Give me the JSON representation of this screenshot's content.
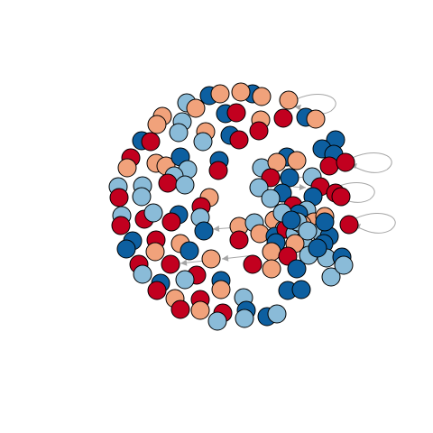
{
  "graph": {
    "type": "network",
    "node_colors": {
      "light_blue": "#8abbd8",
      "dark_blue": "#0d5fa0",
      "red": "#c2001f",
      "salmon": "#f1a27b"
    },
    "edge_color": "#a6a6a6",
    "node_stroke": "#000000",
    "directed": true,
    "node_count": 180
  }
}
